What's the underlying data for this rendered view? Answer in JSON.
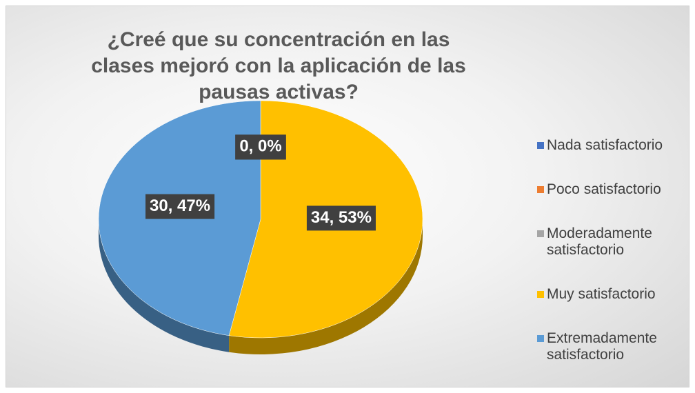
{
  "chart_data": {
    "type": "pie",
    "title": "¿Creé que su concentración en las clases mejoró con la aplicación de las pausas activas?",
    "categories": [
      "Nada satisfactorio",
      "Poco satisfactorio",
      "Moderadamente satisfactorio",
      "Muy satisfactorio",
      "Extremadamente satisfactorio"
    ],
    "values": [
      0,
      0,
      0,
      34,
      30
    ],
    "value_labels": [
      "0, 0%",
      "0, 0%",
      "0, 0%",
      "34, 53%",
      "30, 47%"
    ],
    "colors": [
      "#4472c4",
      "#ed7d31",
      "#a5a5a5",
      "#ffc000",
      "#5b9bd5"
    ],
    "legend": "right"
  }
}
